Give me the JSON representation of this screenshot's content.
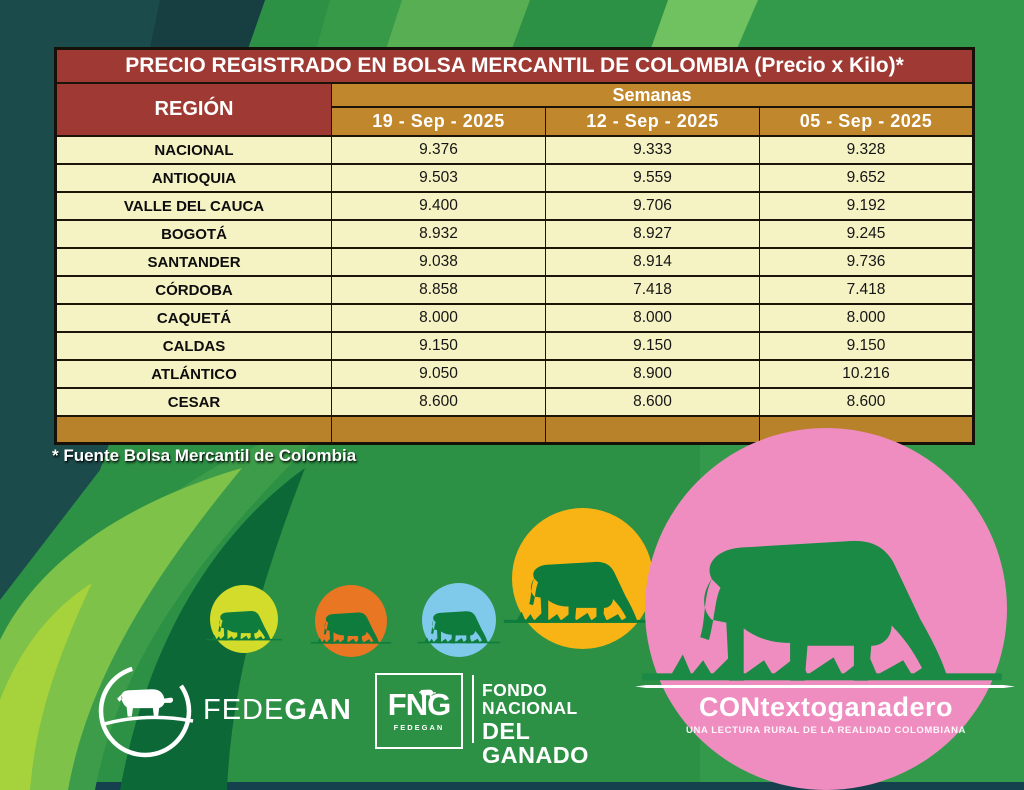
{
  "chart_data": {
    "type": "table",
    "title": "PRECIO REGISTRADO EN BOLSA MERCANTIL DE COLOMBIA (Precio x Kilo)*",
    "region_column_header": "REGIÓN",
    "group_header": "Semanas",
    "columns": [
      "19 - Sep - 2025",
      "12 - Sep - 2025",
      "05 - Sep - 2025"
    ],
    "rows": [
      {
        "region": "NACIONAL",
        "values": [
          "9.376",
          "9.333",
          "9.328"
        ]
      },
      {
        "region": "ANTIOQUIA",
        "values": [
          "9.503",
          "9.559",
          "9.652"
        ]
      },
      {
        "region": "VALLE DEL CAUCA",
        "values": [
          "9.400",
          "9.706",
          "9.192"
        ]
      },
      {
        "region": "BOGOTÁ",
        "values": [
          "8.932",
          "8.927",
          "9.245"
        ]
      },
      {
        "region": "SANTANDER",
        "values": [
          "9.038",
          "8.914",
          "9.736"
        ]
      },
      {
        "region": "CÓRDOBA",
        "values": [
          "8.858",
          "7.418",
          "7.418"
        ]
      },
      {
        "region": "CAQUETÁ",
        "values": [
          "8.000",
          "8.000",
          "8.000"
        ]
      },
      {
        "region": "CALDAS",
        "values": [
          "9.150",
          "9.150",
          "9.150"
        ]
      },
      {
        "region": "ATLÁNTICO",
        "values": [
          "9.050",
          "8.900",
          "10.216"
        ]
      },
      {
        "region": "CESAR",
        "values": [
          "8.600",
          "8.600",
          "8.600"
        ]
      }
    ]
  },
  "footnote": {
    "text": "* Fuente Bolsa Mercantil de Colombia"
  },
  "logos": {
    "fedegan": {
      "light": "FEDE",
      "bold": "GAN"
    },
    "fng": {
      "acronym": "FNG",
      "sub": "FEDEGAN",
      "line1": "FONDO NACIONAL",
      "line2": "DEL GANADO"
    },
    "contexto": {
      "name": "CONtextoganadero",
      "tagline": "UNA LECTURA RURAL DE LA REALIDAD COLOMBIANA"
    }
  },
  "icons": {
    "cow_grazing": "grazing-cow-silhouette",
    "cow_standing": "standing-cow-silhouette"
  },
  "colors": {
    "table_red": "#9E3A33",
    "table_gold": "#C1872C",
    "footer_gold": "#B8822B",
    "cream": "#F5F2C4",
    "bg_green": "#2D9145",
    "dark_teal": "#1C4B4B",
    "bottom_bar": "#15414F",
    "lime": "#D3DC2A",
    "orange": "#E87623",
    "blue": "#7FC9EB",
    "yellow": "#F8B414",
    "pink": "#EF8DC0",
    "cow_green": "#0E7C3C",
    "cow_green_big": "#1A8A45"
  }
}
